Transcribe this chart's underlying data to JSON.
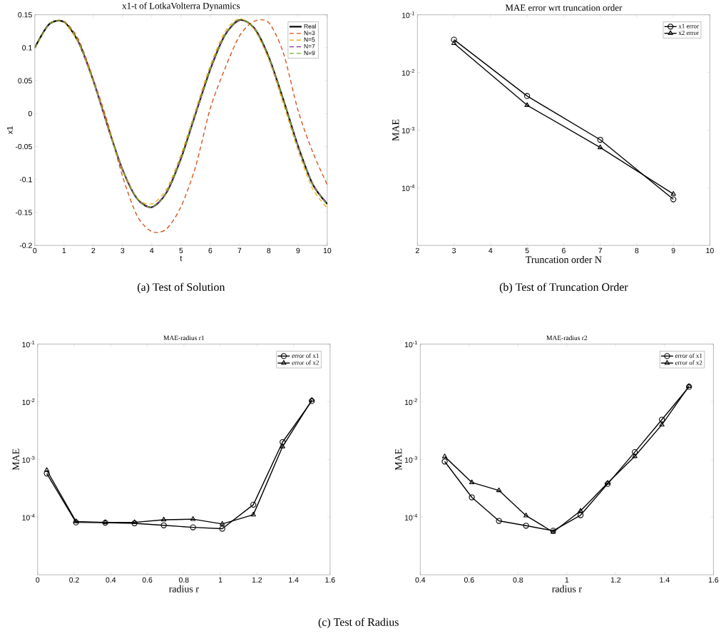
{
  "chart_data": [
    {
      "type": "line",
      "title": "x1-t of LotkaVolterra Dynamics",
      "xlabel": "t",
      "ylabel": "x1",
      "x": [
        0,
        0.5,
        1,
        1.5,
        2,
        2.5,
        3,
        3.5,
        4,
        4.5,
        5,
        5.5,
        6,
        6.5,
        7,
        7.5,
        8,
        8.5,
        9,
        9.5,
        10
      ],
      "series": [
        {
          "name": "Real",
          "color": "#000000",
          "line_style": "solid",
          "values": [
            0.1,
            0.136,
            0.139,
            0.108,
            0.05,
            -0.02,
            -0.085,
            -0.129,
            -0.142,
            -0.12,
            -0.068,
            0.0,
            0.067,
            0.119,
            0.142,
            0.13,
            0.086,
            0.021,
            -0.049,
            -0.107,
            -0.137
          ]
        },
        {
          "name": "N=3",
          "color": "#d95319",
          "line_style": "dashed",
          "values": [
            0.1,
            0.136,
            0.14,
            0.112,
            0.053,
            -0.015,
            -0.095,
            -0.155,
            -0.179,
            -0.175,
            -0.141,
            -0.08,
            0.008,
            0.068,
            0.118,
            0.14,
            0.138,
            0.092,
            0.005,
            -0.058,
            -0.108
          ]
        },
        {
          "name": "N=5",
          "color": "#edb120",
          "line_style": "dashed",
          "values": [
            null,
            null,
            0.139,
            0.107,
            0.049,
            -0.021,
            -0.085,
            -0.128,
            -0.137,
            -0.115,
            -0.062,
            0.006,
            0.073,
            0.124,
            0.144,
            0.128,
            0.082,
            0.015,
            -0.056,
            -0.114,
            -0.143
          ]
        },
        {
          "name": "N=7",
          "color": "#7e2f8e",
          "line_style": "dashed",
          "values": [
            null,
            null,
            null,
            0.108,
            0.05,
            -0.02,
            -0.085,
            -0.129,
            -0.142,
            -0.12,
            -0.068,
            0.0,
            0.067,
            0.119,
            0.141,
            0.13,
            0.086,
            0.021,
            -0.048,
            -0.106,
            -0.136
          ]
        },
        {
          "name": "N=9",
          "color": "#77ac30",
          "line_style": "dashed",
          "values": [
            0.1,
            0.136,
            0.139,
            0.108,
            0.05,
            -0.02,
            -0.085,
            -0.129,
            -0.142,
            -0.12,
            -0.068,
            0.0,
            0.067,
            0.119,
            0.142,
            0.13,
            0.086,
            0.021,
            -0.049,
            -0.107,
            -0.138
          ]
        }
      ],
      "xlim": [
        0,
        10
      ],
      "xticks": [
        0,
        1,
        2,
        3,
        4,
        5,
        6,
        7,
        8,
        9,
        10
      ],
      "ylim": [
        -0.2,
        0.15
      ],
      "yticks": [
        -0.2,
        -0.15,
        -0.1,
        -0.05,
        0,
        0.05,
        0.1,
        0.15
      ],
      "legend": "top right",
      "annotations": [
        "(a) Test of Solution"
      ]
    },
    {
      "type": "line",
      "title": "MAE error wrt truncation order",
      "xlabel": "Truncation order N",
      "ylabel": "MAE",
      "x": [
        3,
        5,
        7,
        9
      ],
      "series": [
        {
          "name": "x1 error",
          "color": "#000000",
          "marker": "circle",
          "values": [
            0.037,
            0.0039,
            0.00068,
            6.3e-05
          ]
        },
        {
          "name": "x2 error",
          "color": "#000000",
          "marker": "triangle",
          "values": [
            0.032,
            0.0027,
            0.0005,
            7.8e-05
          ]
        }
      ],
      "xlim": [
        2,
        10
      ],
      "xticks": [
        2,
        3,
        4,
        5,
        6,
        7,
        8,
        9,
        10
      ],
      "ylim": [
        1e-05,
        0.1
      ],
      "yticks": [
        {
          "value": 0.1,
          "label": "10$^{-1}$"
        },
        {
          "value": 0.01,
          "label": "10$^{-2}$"
        },
        {
          "value": 0.001,
          "label": "10$^{-3}$"
        },
        {
          "value": 0.0001,
          "label": "10$^{-4}$"
        }
      ],
      "log": true,
      "legend": "top right",
      "annotations": [
        "(b) Test of Truncation Order"
      ]
    },
    {
      "type": "line",
      "title": "MAE-radius r1",
      "xlabel": "radius r",
      "ylabel": "MAE",
      "x": [
        0.05,
        0.21,
        0.37,
        0.53,
        0.69,
        0.85,
        1.01,
        1.18,
        1.34,
        1.5
      ],
      "series": [
        {
          "name": "error of x1",
          "color": "#000000",
          "marker": "circle",
          "values": [
            0.00057,
            8.1e-05,
            8e-05,
            7.8e-05,
            7.2e-05,
            6.65e-05,
            6.3e-05,
            0.000164,
            0.002,
            0.0103
          ]
        },
        {
          "name": "error of x2",
          "color": "#000000",
          "marker": "triangle",
          "values": [
            0.00065,
            8.4e-05,
            8.1e-05,
            8.1e-05,
            9e-05,
            9.2e-05,
            7.6e-05,
            0.00011,
            0.00167,
            0.0107
          ]
        }
      ],
      "xlim": [
        0,
        1.6
      ],
      "xticks": [
        0,
        0.2,
        0.4,
        0.6,
        0.8,
        1,
        1.2,
        1.4,
        1.6
      ],
      "ylim": [
        1e-05,
        0.1
      ],
      "yticks": [
        {
          "value": 0.1,
          "label": "10$^{-1}$"
        },
        {
          "value": 0.01,
          "label": "10$^{-2}$"
        },
        {
          "value": 0.001,
          "label": "10$^{-3}$"
        },
        {
          "value": 0.0001,
          "label": "10$^{-4}$"
        }
      ],
      "log": true,
      "legend": "top right",
      "annotations": [
        "(c) Test of Radius"
      ]
    },
    {
      "type": "line",
      "title": "MAE-radius r2",
      "xlabel": "radius r",
      "ylabel": "MAE",
      "x": [
        0.5,
        0.611,
        0.722,
        0.833,
        0.944,
        1.056,
        1.167,
        1.278,
        1.389,
        1.5
      ],
      "series": [
        {
          "name": "error of x1",
          "color": "#000000",
          "marker": "circle",
          "values": [
            0.00092,
            0.00022,
            8.6e-05,
            7.1e-05,
            5.8e-05,
            0.000108,
            0.000377,
            0.00134,
            0.0049,
            0.0182
          ]
        },
        {
          "name": "error of x2",
          "color": "#000000",
          "marker": "triangle",
          "values": [
            0.00112,
            0.0004,
            0.00029,
            0.000106,
            5.5e-05,
            0.000128,
            0.00039,
            0.00113,
            0.004,
            0.0186
          ]
        }
      ],
      "xlim": [
        0.4,
        1.6
      ],
      "xticks": [
        0.4,
        0.6,
        0.8,
        1,
        1.2,
        1.4,
        1.6
      ],
      "ylim": [
        1e-05,
        0.1
      ],
      "yticks": [
        {
          "value": 0.1,
          "label": "10$^{-1}$"
        },
        {
          "value": 0.01,
          "label": "10$^{-2}$"
        },
        {
          "value": 0.001,
          "label": "10$^{-3}$"
        },
        {
          "value": 0.0001,
          "label": "10$^{-4}$"
        }
      ],
      "log": true,
      "legend": "top right"
    }
  ]
}
